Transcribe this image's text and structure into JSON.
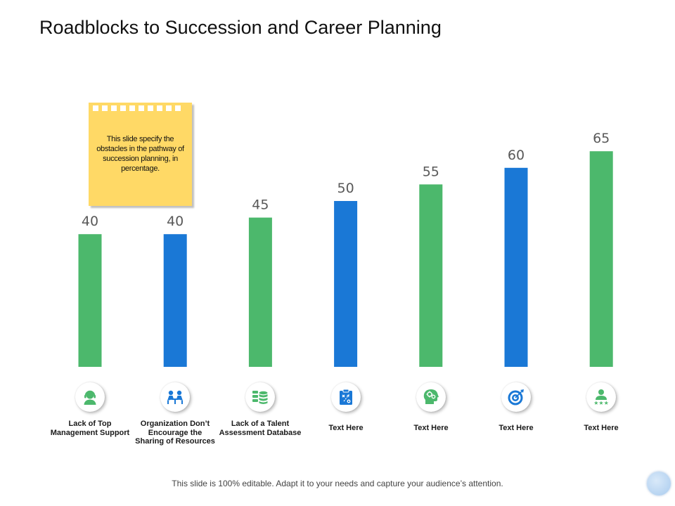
{
  "title": "Roadblocks to Succession and Career Planning",
  "note": {
    "text": "This slide specify the obstacles in the pathway of succession planning, in percentage."
  },
  "chart_data": {
    "type": "bar",
    "title": "Roadblocks to Succession and Career Planning",
    "categories": [
      "Lack of Top Management Support",
      "Organization Don’t Encourage the Sharing of Resources",
      "Lack of a Talent Assessment Database",
      "Text Here",
      "Text Here",
      "Text Here",
      "Text Here"
    ],
    "values": [
      40,
      40,
      45,
      50,
      55,
      60,
      65
    ],
    "colors": [
      "#4cb86c",
      "#1a78d6",
      "#4cb86c",
      "#1a78d6",
      "#4cb86c",
      "#1a78d6",
      "#4cb86c"
    ],
    "ylim": [
      0,
      100
    ],
    "xlabel": "",
    "ylabel": "",
    "grid": false,
    "legend": "none",
    "unit": "percentage"
  },
  "categories": [
    {
      "label": "Lack of Top Management Support",
      "icon": "support-agent-icon"
    },
    {
      "label": "Organization Don’t Encourage the Sharing of Resources",
      "icon": "team-meeting-icon"
    },
    {
      "label": "Lack of a Talent Assessment Database",
      "icon": "database-icon"
    },
    {
      "label": "Text Here",
      "icon": "clipboard-strategy-icon"
    },
    {
      "label": "Text Here",
      "icon": "brain-gears-icon"
    },
    {
      "label": "Text Here",
      "icon": "target-icon"
    },
    {
      "label": "Text Here",
      "icon": "star-employee-icon"
    }
  ],
  "footer": "This slide is 100% editable. Adapt it to your needs and capture your audience’s attention.",
  "theme": {
    "green": "#4cb86c",
    "blue": "#1a78d6",
    "note": "#ffd966"
  }
}
